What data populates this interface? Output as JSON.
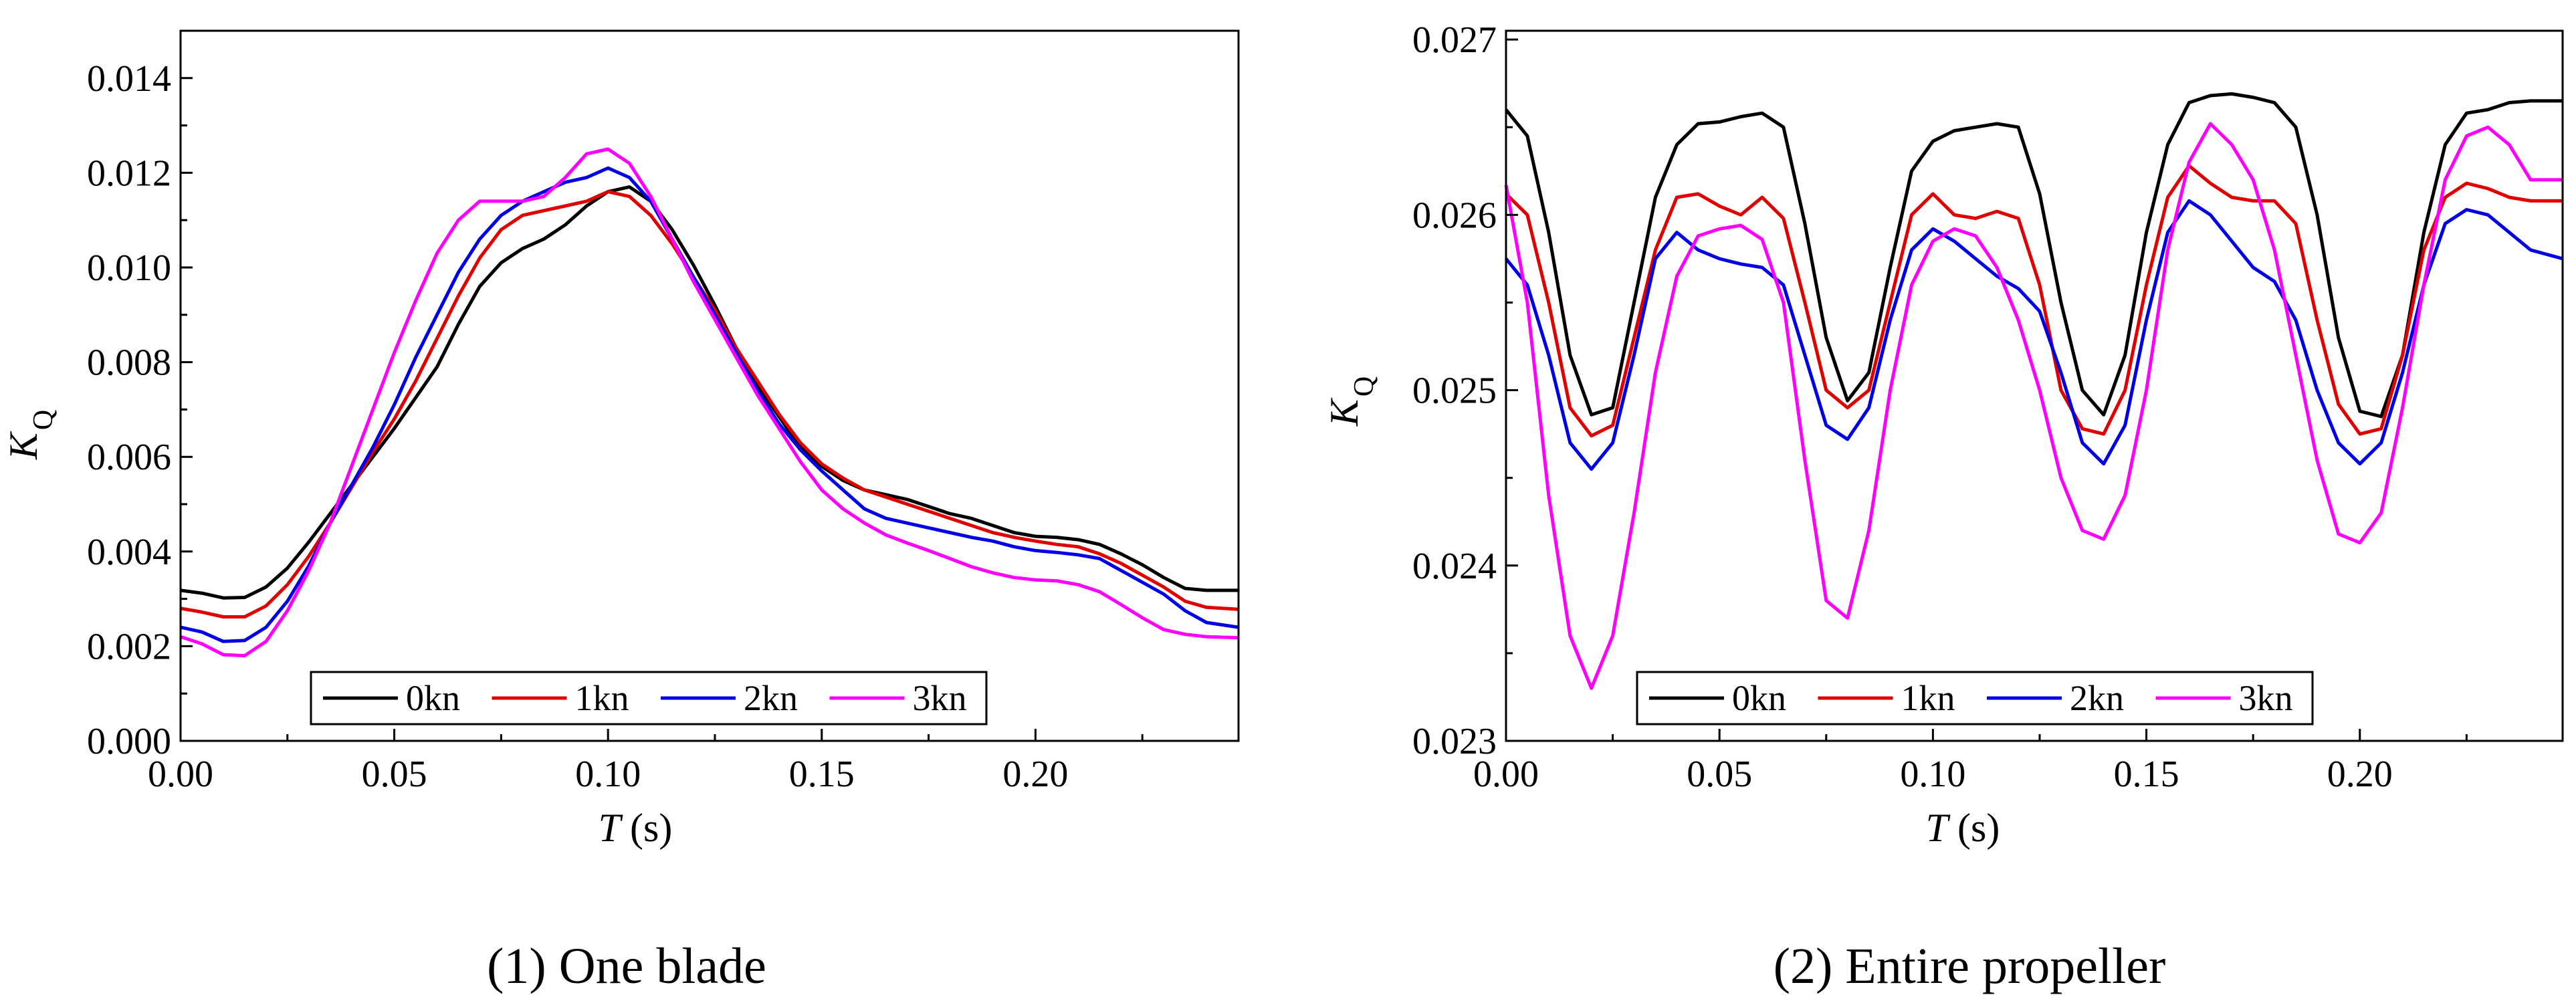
{
  "colors": {
    "0kn": "#000000",
    "1kn": "#e00000",
    "2kn": "#0000e6",
    "3kn": "#ff00ff"
  },
  "chart_data": [
    {
      "type": "line",
      "caption": "(1) One blade",
      "xlabel_main": "T",
      "xlabel_unit": "(s)",
      "ylabel_main": "K",
      "ylabel_sub": "Q",
      "xlim": [
        0.0,
        0.2475
      ],
      "ylim": [
        0.0,
        0.015
      ],
      "xticks": [
        0.0,
        0.05,
        0.1,
        0.15,
        0.2
      ],
      "xtick_labels": [
        "0.00",
        "0.05",
        "0.10",
        "0.15",
        "0.20"
      ],
      "yticks": [
        0.0,
        0.002,
        0.004,
        0.006,
        0.008,
        0.01,
        0.012,
        0.014
      ],
      "ytick_labels": [
        "0.000",
        "0.002",
        "0.004",
        "0.006",
        "0.008",
        "0.010",
        "0.012",
        "0.014"
      ],
      "legend": [
        "0kn",
        "1kn",
        "2kn",
        "3kn"
      ],
      "legend_position": "bottom-center",
      "series": [
        {
          "name": "0kn",
          "x": [
            0,
            0.005,
            0.01,
            0.015,
            0.02,
            0.025,
            0.03,
            0.035,
            0.04,
            0.045,
            0.05,
            0.055,
            0.06,
            0.065,
            0.07,
            0.075,
            0.08,
            0.085,
            0.09,
            0.095,
            0.1,
            0.105,
            0.11,
            0.115,
            0.12,
            0.125,
            0.13,
            0.135,
            0.14,
            0.145,
            0.15,
            0.155,
            0.16,
            0.165,
            0.17,
            0.175,
            0.18,
            0.185,
            0.19,
            0.195,
            0.2,
            0.205,
            0.21,
            0.215,
            0.22,
            0.225,
            0.23,
            0.235,
            0.24,
            0.2475
          ],
          "y": [
            0.00318,
            0.00312,
            0.00302,
            0.00303,
            0.00325,
            0.00365,
            0.0042,
            0.0048,
            0.0054,
            0.006,
            0.0066,
            0.00725,
            0.0079,
            0.0088,
            0.0096,
            0.0101,
            0.0104,
            0.0106,
            0.0109,
            0.0113,
            0.0116,
            0.0117,
            0.0114,
            0.0108,
            0.01005,
            0.0092,
            0.0083,
            0.0075,
            0.00685,
            0.0062,
            0.0058,
            0.0055,
            0.0053,
            0.0052,
            0.0051,
            0.00495,
            0.0048,
            0.0047,
            0.00455,
            0.0044,
            0.00432,
            0.0043,
            0.00425,
            0.00415,
            0.00395,
            0.00372,
            0.00345,
            0.00322,
            0.00318,
            0.00318
          ]
        },
        {
          "name": "1kn",
          "x": [
            0,
            0.005,
            0.01,
            0.015,
            0.02,
            0.025,
            0.03,
            0.035,
            0.04,
            0.045,
            0.05,
            0.055,
            0.06,
            0.065,
            0.07,
            0.075,
            0.08,
            0.085,
            0.09,
            0.095,
            0.1,
            0.105,
            0.11,
            0.115,
            0.12,
            0.125,
            0.13,
            0.135,
            0.14,
            0.145,
            0.15,
            0.155,
            0.16,
            0.165,
            0.17,
            0.175,
            0.18,
            0.185,
            0.19,
            0.195,
            0.2,
            0.205,
            0.21,
            0.215,
            0.22,
            0.225,
            0.23,
            0.235,
            0.24,
            0.2475
          ],
          "y": [
            0.0028,
            0.00272,
            0.00262,
            0.00262,
            0.00285,
            0.0033,
            0.0039,
            0.0046,
            0.00535,
            0.0061,
            0.0068,
            0.0076,
            0.0085,
            0.0094,
            0.0102,
            0.0108,
            0.0111,
            0.0112,
            0.0113,
            0.0114,
            0.0116,
            0.0115,
            0.0111,
            0.0105,
            0.0098,
            0.0091,
            0.0083,
            0.0076,
            0.0069,
            0.0063,
            0.00585,
            0.00555,
            0.0053,
            0.00515,
            0.005,
            0.00485,
            0.0047,
            0.00455,
            0.0044,
            0.0043,
            0.00422,
            0.00415,
            0.0041,
            0.00395,
            0.00375,
            0.0035,
            0.00325,
            0.00295,
            0.00282,
            0.00278
          ]
        },
        {
          "name": "2kn",
          "x": [
            0,
            0.005,
            0.01,
            0.015,
            0.02,
            0.025,
            0.03,
            0.035,
            0.04,
            0.045,
            0.05,
            0.055,
            0.06,
            0.065,
            0.07,
            0.075,
            0.08,
            0.085,
            0.09,
            0.095,
            0.1,
            0.105,
            0.11,
            0.115,
            0.12,
            0.125,
            0.13,
            0.135,
            0.14,
            0.145,
            0.15,
            0.155,
            0.16,
            0.165,
            0.17,
            0.175,
            0.18,
            0.185,
            0.19,
            0.195,
            0.2,
            0.205,
            0.21,
            0.215,
            0.22,
            0.225,
            0.23,
            0.235,
            0.24,
            0.2475
          ],
          "y": [
            0.0024,
            0.0023,
            0.0021,
            0.00212,
            0.0024,
            0.00295,
            0.0037,
            0.0046,
            0.0054,
            0.0062,
            0.0071,
            0.0081,
            0.009,
            0.0099,
            0.0106,
            0.0111,
            0.0114,
            0.0116,
            0.0118,
            0.0119,
            0.0121,
            0.0119,
            0.0114,
            0.0106,
            0.0098,
            0.009,
            0.0082,
            0.0074,
            0.0067,
            0.00615,
            0.0057,
            0.0053,
            0.0049,
            0.0047,
            0.0046,
            0.0045,
            0.0044,
            0.0043,
            0.00422,
            0.0041,
            0.00402,
            0.00398,
            0.00393,
            0.00385,
            0.0036,
            0.00335,
            0.0031,
            0.00275,
            0.0025,
            0.0024
          ]
        },
        {
          "name": "3kn",
          "x": [
            0,
            0.005,
            0.01,
            0.015,
            0.02,
            0.025,
            0.03,
            0.035,
            0.04,
            0.045,
            0.05,
            0.055,
            0.06,
            0.065,
            0.07,
            0.075,
            0.08,
            0.085,
            0.09,
            0.095,
            0.1,
            0.105,
            0.11,
            0.115,
            0.12,
            0.125,
            0.13,
            0.135,
            0.14,
            0.145,
            0.15,
            0.155,
            0.16,
            0.165,
            0.17,
            0.175,
            0.18,
            0.185,
            0.19,
            0.195,
            0.2,
            0.205,
            0.21,
            0.215,
            0.22,
            0.225,
            0.23,
            0.235,
            0.24,
            0.2475
          ],
          "y": [
            0.0022,
            0.00205,
            0.00182,
            0.0018,
            0.0021,
            0.00275,
            0.0036,
            0.0046,
            0.0058,
            0.007,
            0.0082,
            0.0093,
            0.0103,
            0.011,
            0.0114,
            0.0114,
            0.0114,
            0.0115,
            0.0119,
            0.0124,
            0.0125,
            0.0122,
            0.0115,
            0.0106,
            0.0097,
            0.0089,
            0.0081,
            0.0073,
            0.0066,
            0.0059,
            0.0053,
            0.0049,
            0.0046,
            0.00435,
            0.00418,
            0.00402,
            0.00385,
            0.00368,
            0.00355,
            0.00345,
            0.0034,
            0.00338,
            0.0033,
            0.00315,
            0.00288,
            0.0026,
            0.00235,
            0.00225,
            0.0022,
            0.00218
          ]
        }
      ]
    },
    {
      "type": "line",
      "caption": "(2) Entire propeller",
      "xlabel_main": "T",
      "xlabel_unit": "(s)",
      "ylabel_main": "K",
      "ylabel_sub": "Q",
      "xlim": [
        0.0,
        0.2475
      ],
      "ylim": [
        0.023,
        0.02705
      ],
      "xticks": [
        0.0,
        0.05,
        0.1,
        0.15,
        0.2
      ],
      "xtick_labels": [
        "0.00",
        "0.05",
        "0.10",
        "0.15",
        "0.20"
      ],
      "yticks": [
        0.023,
        0.024,
        0.025,
        0.026,
        0.027
      ],
      "ytick_labels": [
        "0.023",
        "0.024",
        "0.025",
        "0.026",
        "0.027"
      ],
      "legend": [
        "0kn",
        "1kn",
        "2kn",
        "3kn"
      ],
      "legend_position": "bottom-center",
      "series": [
        {
          "name": "0kn",
          "x": [
            0,
            0.005,
            0.01,
            0.015,
            0.02,
            0.025,
            0.03,
            0.035,
            0.04,
            0.045,
            0.05,
            0.055,
            0.06,
            0.065,
            0.07,
            0.075,
            0.08,
            0.085,
            0.09,
            0.095,
            0.1,
            0.105,
            0.11,
            0.115,
            0.12,
            0.125,
            0.13,
            0.135,
            0.14,
            0.145,
            0.15,
            0.155,
            0.16,
            0.165,
            0.17,
            0.175,
            0.18,
            0.185,
            0.19,
            0.195,
            0.2,
            0.205,
            0.21,
            0.215,
            0.22,
            0.225,
            0.23,
            0.235,
            0.24,
            0.2475
          ],
          "y": [
            0.0266,
            0.02645,
            0.0259,
            0.0252,
            0.02486,
            0.0249,
            0.0255,
            0.0261,
            0.0264,
            0.02652,
            0.02653,
            0.02656,
            0.02658,
            0.0265,
            0.02595,
            0.0253,
            0.02494,
            0.0251,
            0.0257,
            0.02625,
            0.02642,
            0.02648,
            0.0265,
            0.02652,
            0.0265,
            0.02612,
            0.0255,
            0.025,
            0.02486,
            0.0252,
            0.0259,
            0.0264,
            0.02664,
            0.02668,
            0.02669,
            0.02667,
            0.02664,
            0.0265,
            0.026,
            0.0253,
            0.02488,
            0.02485,
            0.0252,
            0.0259,
            0.0264,
            0.02658,
            0.0266,
            0.02664,
            0.02665,
            0.02665
          ]
        },
        {
          "name": "1kn",
          "x": [
            0,
            0.005,
            0.01,
            0.015,
            0.02,
            0.025,
            0.03,
            0.035,
            0.04,
            0.045,
            0.05,
            0.055,
            0.06,
            0.065,
            0.07,
            0.075,
            0.08,
            0.085,
            0.09,
            0.095,
            0.1,
            0.105,
            0.11,
            0.115,
            0.12,
            0.125,
            0.13,
            0.135,
            0.14,
            0.145,
            0.15,
            0.155,
            0.16,
            0.165,
            0.17,
            0.175,
            0.18,
            0.185,
            0.19,
            0.195,
            0.2,
            0.205,
            0.21,
            0.215,
            0.22,
            0.225,
            0.23,
            0.235,
            0.24,
            0.2475
          ],
          "y": [
            0.02612,
            0.026,
            0.0255,
            0.0249,
            0.02474,
            0.0248,
            0.0253,
            0.0258,
            0.0261,
            0.02612,
            0.02605,
            0.026,
            0.0261,
            0.02598,
            0.0255,
            0.025,
            0.0249,
            0.025,
            0.0255,
            0.026,
            0.02612,
            0.026,
            0.02598,
            0.02602,
            0.02598,
            0.0256,
            0.025,
            0.02478,
            0.02475,
            0.025,
            0.0256,
            0.0261,
            0.02628,
            0.02618,
            0.0261,
            0.02608,
            0.02608,
            0.02595,
            0.0254,
            0.02492,
            0.02475,
            0.02478,
            0.0252,
            0.0258,
            0.0261,
            0.02618,
            0.02615,
            0.0261,
            0.02608,
            0.02608
          ]
        },
        {
          "name": "2kn",
          "x": [
            0,
            0.005,
            0.01,
            0.015,
            0.02,
            0.025,
            0.03,
            0.035,
            0.04,
            0.045,
            0.05,
            0.055,
            0.06,
            0.065,
            0.07,
            0.075,
            0.08,
            0.085,
            0.09,
            0.095,
            0.1,
            0.105,
            0.11,
            0.115,
            0.12,
            0.125,
            0.13,
            0.135,
            0.14,
            0.145,
            0.15,
            0.155,
            0.16,
            0.165,
            0.17,
            0.175,
            0.18,
            0.185,
            0.19,
            0.195,
            0.2,
            0.205,
            0.21,
            0.215,
            0.22,
            0.225,
            0.23,
            0.235,
            0.24,
            0.2475
          ],
          "y": [
            0.02575,
            0.0256,
            0.0252,
            0.0247,
            0.02455,
            0.0247,
            0.0252,
            0.02575,
            0.0259,
            0.0258,
            0.02575,
            0.02572,
            0.0257,
            0.0256,
            0.0252,
            0.0248,
            0.02472,
            0.0249,
            0.0254,
            0.0258,
            0.02592,
            0.02585,
            0.02575,
            0.02565,
            0.02558,
            0.02545,
            0.0251,
            0.0247,
            0.02458,
            0.0248,
            0.0254,
            0.0259,
            0.02608,
            0.026,
            0.02585,
            0.0257,
            0.02562,
            0.0254,
            0.025,
            0.0247,
            0.02458,
            0.0247,
            0.0251,
            0.0256,
            0.02595,
            0.02603,
            0.026,
            0.0259,
            0.0258,
            0.02575
          ]
        },
        {
          "name": "3kn",
          "x": [
            0,
            0.005,
            0.01,
            0.015,
            0.02,
            0.025,
            0.03,
            0.035,
            0.04,
            0.045,
            0.05,
            0.055,
            0.06,
            0.065,
            0.07,
            0.075,
            0.08,
            0.085,
            0.09,
            0.095,
            0.1,
            0.105,
            0.11,
            0.115,
            0.12,
            0.125,
            0.13,
            0.135,
            0.14,
            0.145,
            0.15,
            0.155,
            0.16,
            0.165,
            0.17,
            0.175,
            0.18,
            0.185,
            0.19,
            0.195,
            0.2,
            0.205,
            0.21,
            0.215,
            0.22,
            0.225,
            0.23,
            0.235,
            0.24,
            0.2475
          ],
          "y": [
            0.02617,
            0.0255,
            0.0244,
            0.0236,
            0.0233,
            0.0236,
            0.0243,
            0.0251,
            0.02565,
            0.02588,
            0.02592,
            0.02594,
            0.02586,
            0.0255,
            0.0246,
            0.0238,
            0.0237,
            0.0242,
            0.025,
            0.0256,
            0.02585,
            0.02592,
            0.02588,
            0.0257,
            0.0254,
            0.025,
            0.0245,
            0.0242,
            0.02415,
            0.0244,
            0.025,
            0.0258,
            0.0263,
            0.02652,
            0.0264,
            0.0262,
            0.0258,
            0.0252,
            0.0246,
            0.02418,
            0.02413,
            0.0243,
            0.0249,
            0.0256,
            0.0262,
            0.02645,
            0.0265,
            0.0264,
            0.0262,
            0.0262
          ]
        }
      ]
    }
  ]
}
